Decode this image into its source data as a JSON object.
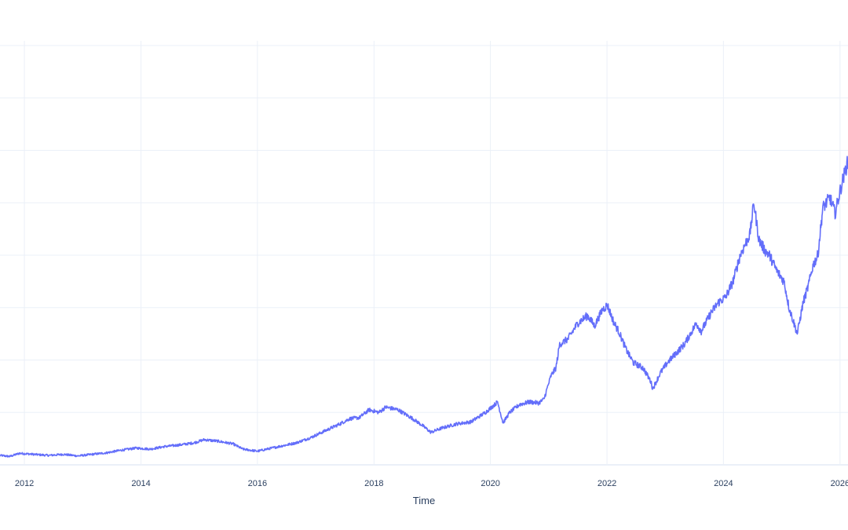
{
  "chart_data": {
    "type": "line",
    "title": "",
    "xlabel": "Time",
    "ylabel": "",
    "x_tick_labels": [
      "2012",
      "2014",
      "2016",
      "2018",
      "2020",
      "2022",
      "2024",
      "2026"
    ],
    "xlim": [
      "2011-08-01",
      "2026-02-20"
    ],
    "ylim": [
      0,
      8.3
    ],
    "grid": true,
    "legend": "none",
    "colors": {
      "line": "#636efa",
      "grid": "#ebf0f8",
      "axis_text": "#2a3f5f",
      "background": "#ffffff"
    },
    "series": [
      {
        "x": [
          "2011-08-01",
          "2011-10-01",
          "2011-12-01",
          "2012-03-01",
          "2012-06-01",
          "2012-09-01",
          "2012-12-01",
          "2013-03-01",
          "2013-06-01",
          "2013-09-01",
          "2013-12-01",
          "2014-03-01",
          "2014-06-01",
          "2014-09-01",
          "2014-12-01",
          "2015-02-01",
          "2015-05-01",
          "2015-08-01",
          "2015-10-01",
          "2016-01-01",
          "2016-03-01",
          "2016-06-01",
          "2016-09-01",
          "2016-12-01",
          "2017-03-01",
          "2017-06-01",
          "2017-08-01",
          "2017-10-01",
          "2017-12-01",
          "2018-02-01",
          "2018-03-15",
          "2018-06-01",
          "2018-09-01",
          "2018-11-01",
          "2018-12-24",
          "2019-03-01",
          "2019-06-01",
          "2019-09-01",
          "2019-12-01",
          "2020-02-15",
          "2020-03-20",
          "2020-05-01",
          "2020-07-01",
          "2020-09-01",
          "2020-10-30",
          "2020-12-01",
          "2021-01-15",
          "2021-02-15",
          "2021-03-10",
          "2021-05-01",
          "2021-07-01",
          "2021-09-01",
          "2021-10-15",
          "2021-12-01",
          "2022-01-03",
          "2022-02-15",
          "2022-03-15",
          "2022-05-01",
          "2022-06-15",
          "2022-08-15",
          "2022-10-01",
          "2022-10-15",
          "2022-12-01",
          "2023-01-15",
          "2023-03-01",
          "2023-05-01",
          "2023-07-15",
          "2023-08-15",
          "2023-10-15",
          "2023-12-01",
          "2024-01-15",
          "2024-03-01",
          "2024-04-15",
          "2024-06-15",
          "2024-07-10",
          "2024-08-10",
          "2024-09-15",
          "2024-10-15",
          "2024-12-01",
          "2025-01-15",
          "2025-02-15",
          "2025-04-08",
          "2025-05-15",
          "2025-06-15",
          "2025-07-15",
          "2025-08-15",
          "2025-09-15",
          "2025-10-30",
          "2025-12-01",
          "2026-01-15",
          "2026-02-20"
        ],
        "values": [
          0.18,
          0.16,
          0.22,
          0.2,
          0.18,
          0.2,
          0.17,
          0.2,
          0.23,
          0.28,
          0.32,
          0.3,
          0.35,
          0.38,
          0.42,
          0.48,
          0.45,
          0.4,
          0.3,
          0.26,
          0.3,
          0.36,
          0.42,
          0.52,
          0.65,
          0.78,
          0.88,
          0.9,
          1.05,
          1.0,
          1.1,
          1.05,
          0.88,
          0.75,
          0.62,
          0.7,
          0.78,
          0.82,
          1.0,
          1.2,
          0.8,
          1.0,
          1.15,
          1.2,
          1.18,
          1.25,
          1.7,
          1.85,
          2.3,
          2.4,
          2.7,
          2.85,
          2.65,
          2.95,
          3.05,
          2.7,
          2.55,
          2.2,
          1.95,
          1.85,
          1.6,
          1.45,
          1.75,
          1.95,
          2.1,
          2.3,
          2.7,
          2.55,
          2.9,
          3.1,
          3.2,
          3.5,
          4.0,
          4.4,
          5.0,
          4.3,
          4.1,
          4.0,
          3.7,
          3.5,
          3.0,
          2.5,
          3.1,
          3.4,
          3.8,
          4.0,
          4.9,
          5.1,
          4.8,
          5.4,
          5.8
        ]
      }
    ]
  }
}
